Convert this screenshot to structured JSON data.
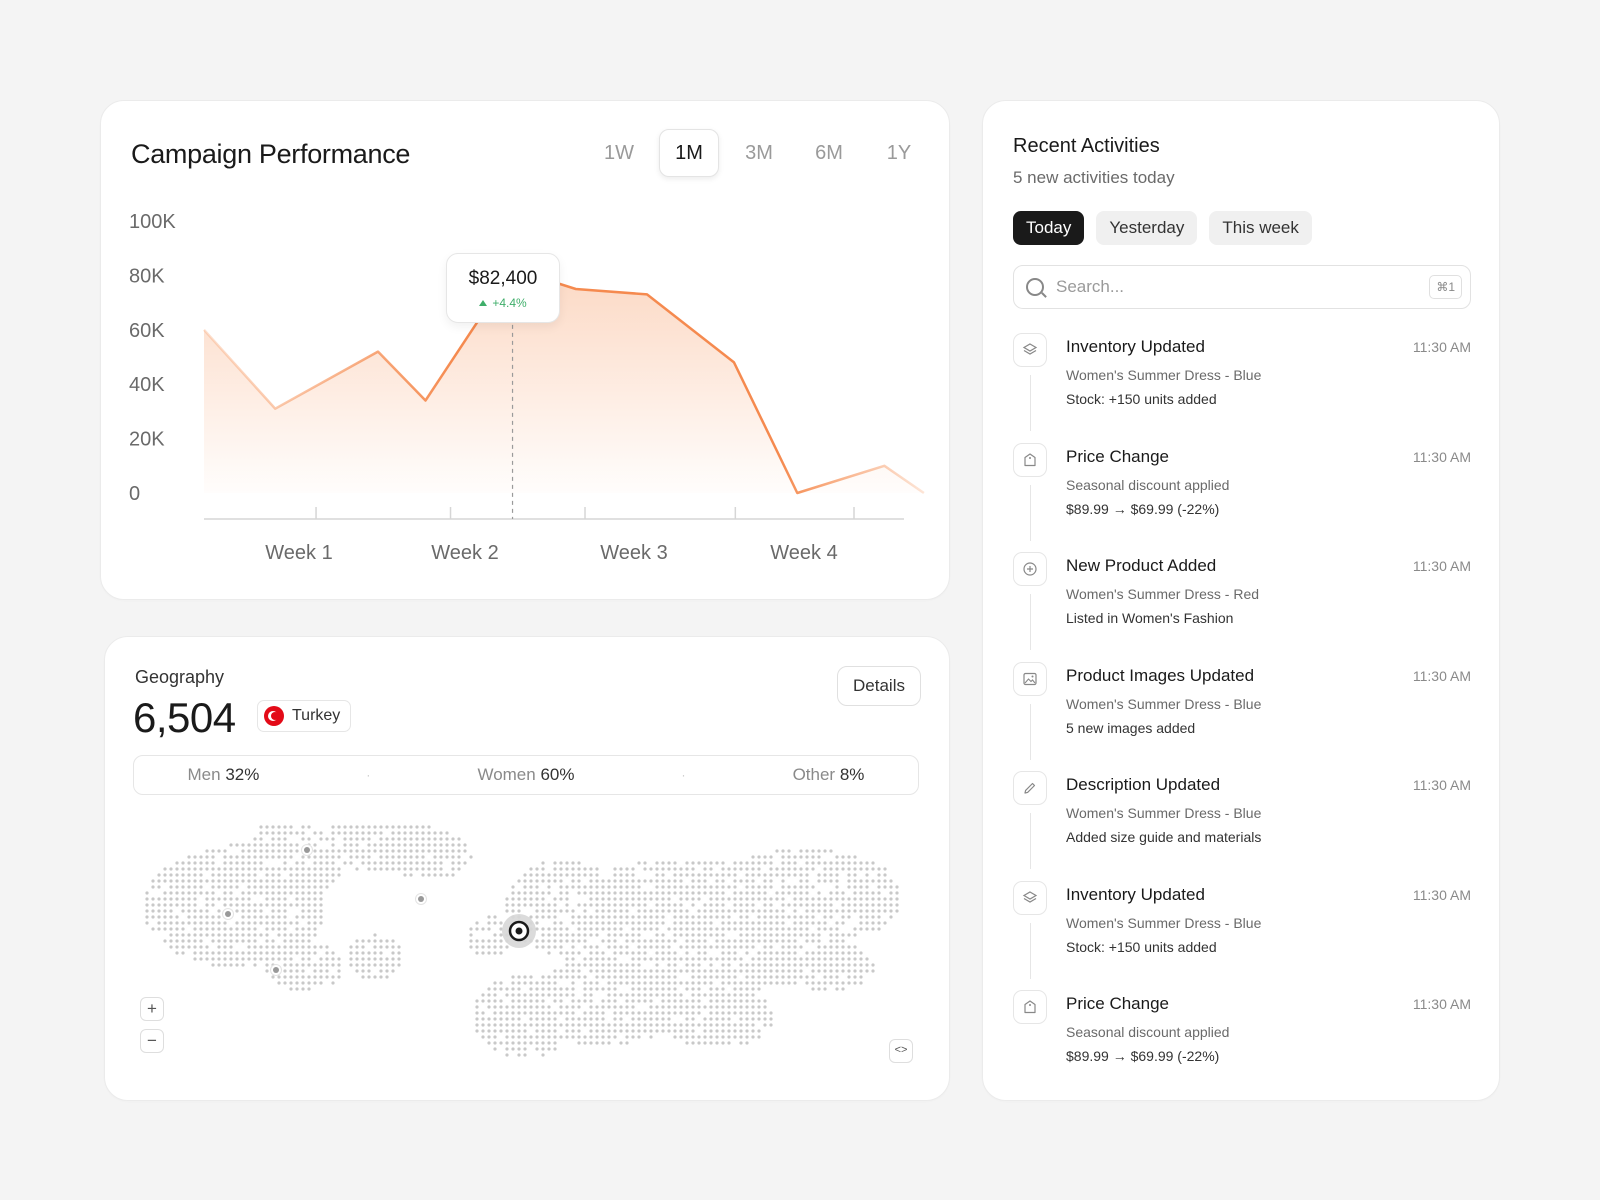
{
  "campaign": {
    "title": "Campaign Performance",
    "ranges": [
      "1W",
      "1M",
      "3M",
      "6M",
      "1Y"
    ],
    "active_range": "1M",
    "tooltip": {
      "value": "$82,400",
      "delta": "+4.4%"
    },
    "chart_data": {
      "type": "area",
      "title": "Campaign Performance",
      "xlabel": "",
      "ylabel": "",
      "y_ticks": [
        "100K",
        "80K",
        "60K",
        "40K",
        "20K",
        "0"
      ],
      "x_ticks": [
        "Week 1",
        "Week 2",
        "Week 3",
        "Week 4"
      ],
      "ylim": [
        0,
        100000
      ],
      "xlim": [
        0,
        4.5
      ],
      "x": [
        0,
        0.45,
        1.1,
        1.4,
        1.95,
        2.35,
        2.8,
        3.35,
        3.75,
        4.3,
        4.55
      ],
      "values": [
        60000,
        31000,
        52000,
        34000,
        82400,
        75000,
        73000,
        48000,
        0,
        10000,
        0
      ],
      "highlight_index": 4,
      "grid": false,
      "accent": "#f4915a"
    }
  },
  "geography": {
    "title": "Geography",
    "value": "6,504",
    "country": "Turkey",
    "details_label": "Details",
    "split": [
      {
        "label": "Men",
        "value": "32%"
      },
      {
        "label": "Women",
        "value": "60%"
      },
      {
        "label": "Other",
        "value": "8%"
      }
    ],
    "separator": "·",
    "zoom_in": "+",
    "zoom_out": "−",
    "code_label": "<>"
  },
  "activities": {
    "title": "Recent Activities",
    "subtitle": "5 new activities today",
    "tabs": [
      "Today",
      "Yesterday",
      "This week"
    ],
    "active_tab": "Today",
    "search_placeholder": "Search...",
    "search_shortcut": "⌘1",
    "items": [
      {
        "icon": "layers-icon",
        "title": "Inventory Updated",
        "time": "11:30 AM",
        "line1": "Women's Summer Dress - Blue",
        "line2": "Stock: +150 units added"
      },
      {
        "icon": "tag-icon",
        "title": "Price Change",
        "time": "11:30 AM",
        "line1": "Seasonal discount applied",
        "line2": "$89.99 → $69.99 (-22%)"
      },
      {
        "icon": "plus-circle-icon",
        "title": "New Product Added",
        "time": "11:30 AM",
        "line1": "Women's Summer Dress - Red",
        "line2": "Listed in Women's Fashion"
      },
      {
        "icon": "image-icon",
        "title": "Product Images Updated",
        "time": "11:30 AM",
        "line1": "Women's Summer Dress - Blue",
        "line2": "5 new images added"
      },
      {
        "icon": "pencil-icon",
        "title": "Description Updated",
        "time": "11:30 AM",
        "line1": "Women's Summer Dress - Blue",
        "line2": "Added size guide and materials"
      },
      {
        "icon": "layers-icon",
        "title": "Inventory Updated",
        "time": "11:30 AM",
        "line1": "Women's Summer Dress - Blue",
        "line2": "Stock: +150 units added"
      },
      {
        "icon": "tag-icon",
        "title": "Price Change",
        "time": "11:30 AM",
        "line1": "Seasonal discount applied",
        "line2": "$89.99 → $69.99 (-22%)"
      }
    ]
  }
}
